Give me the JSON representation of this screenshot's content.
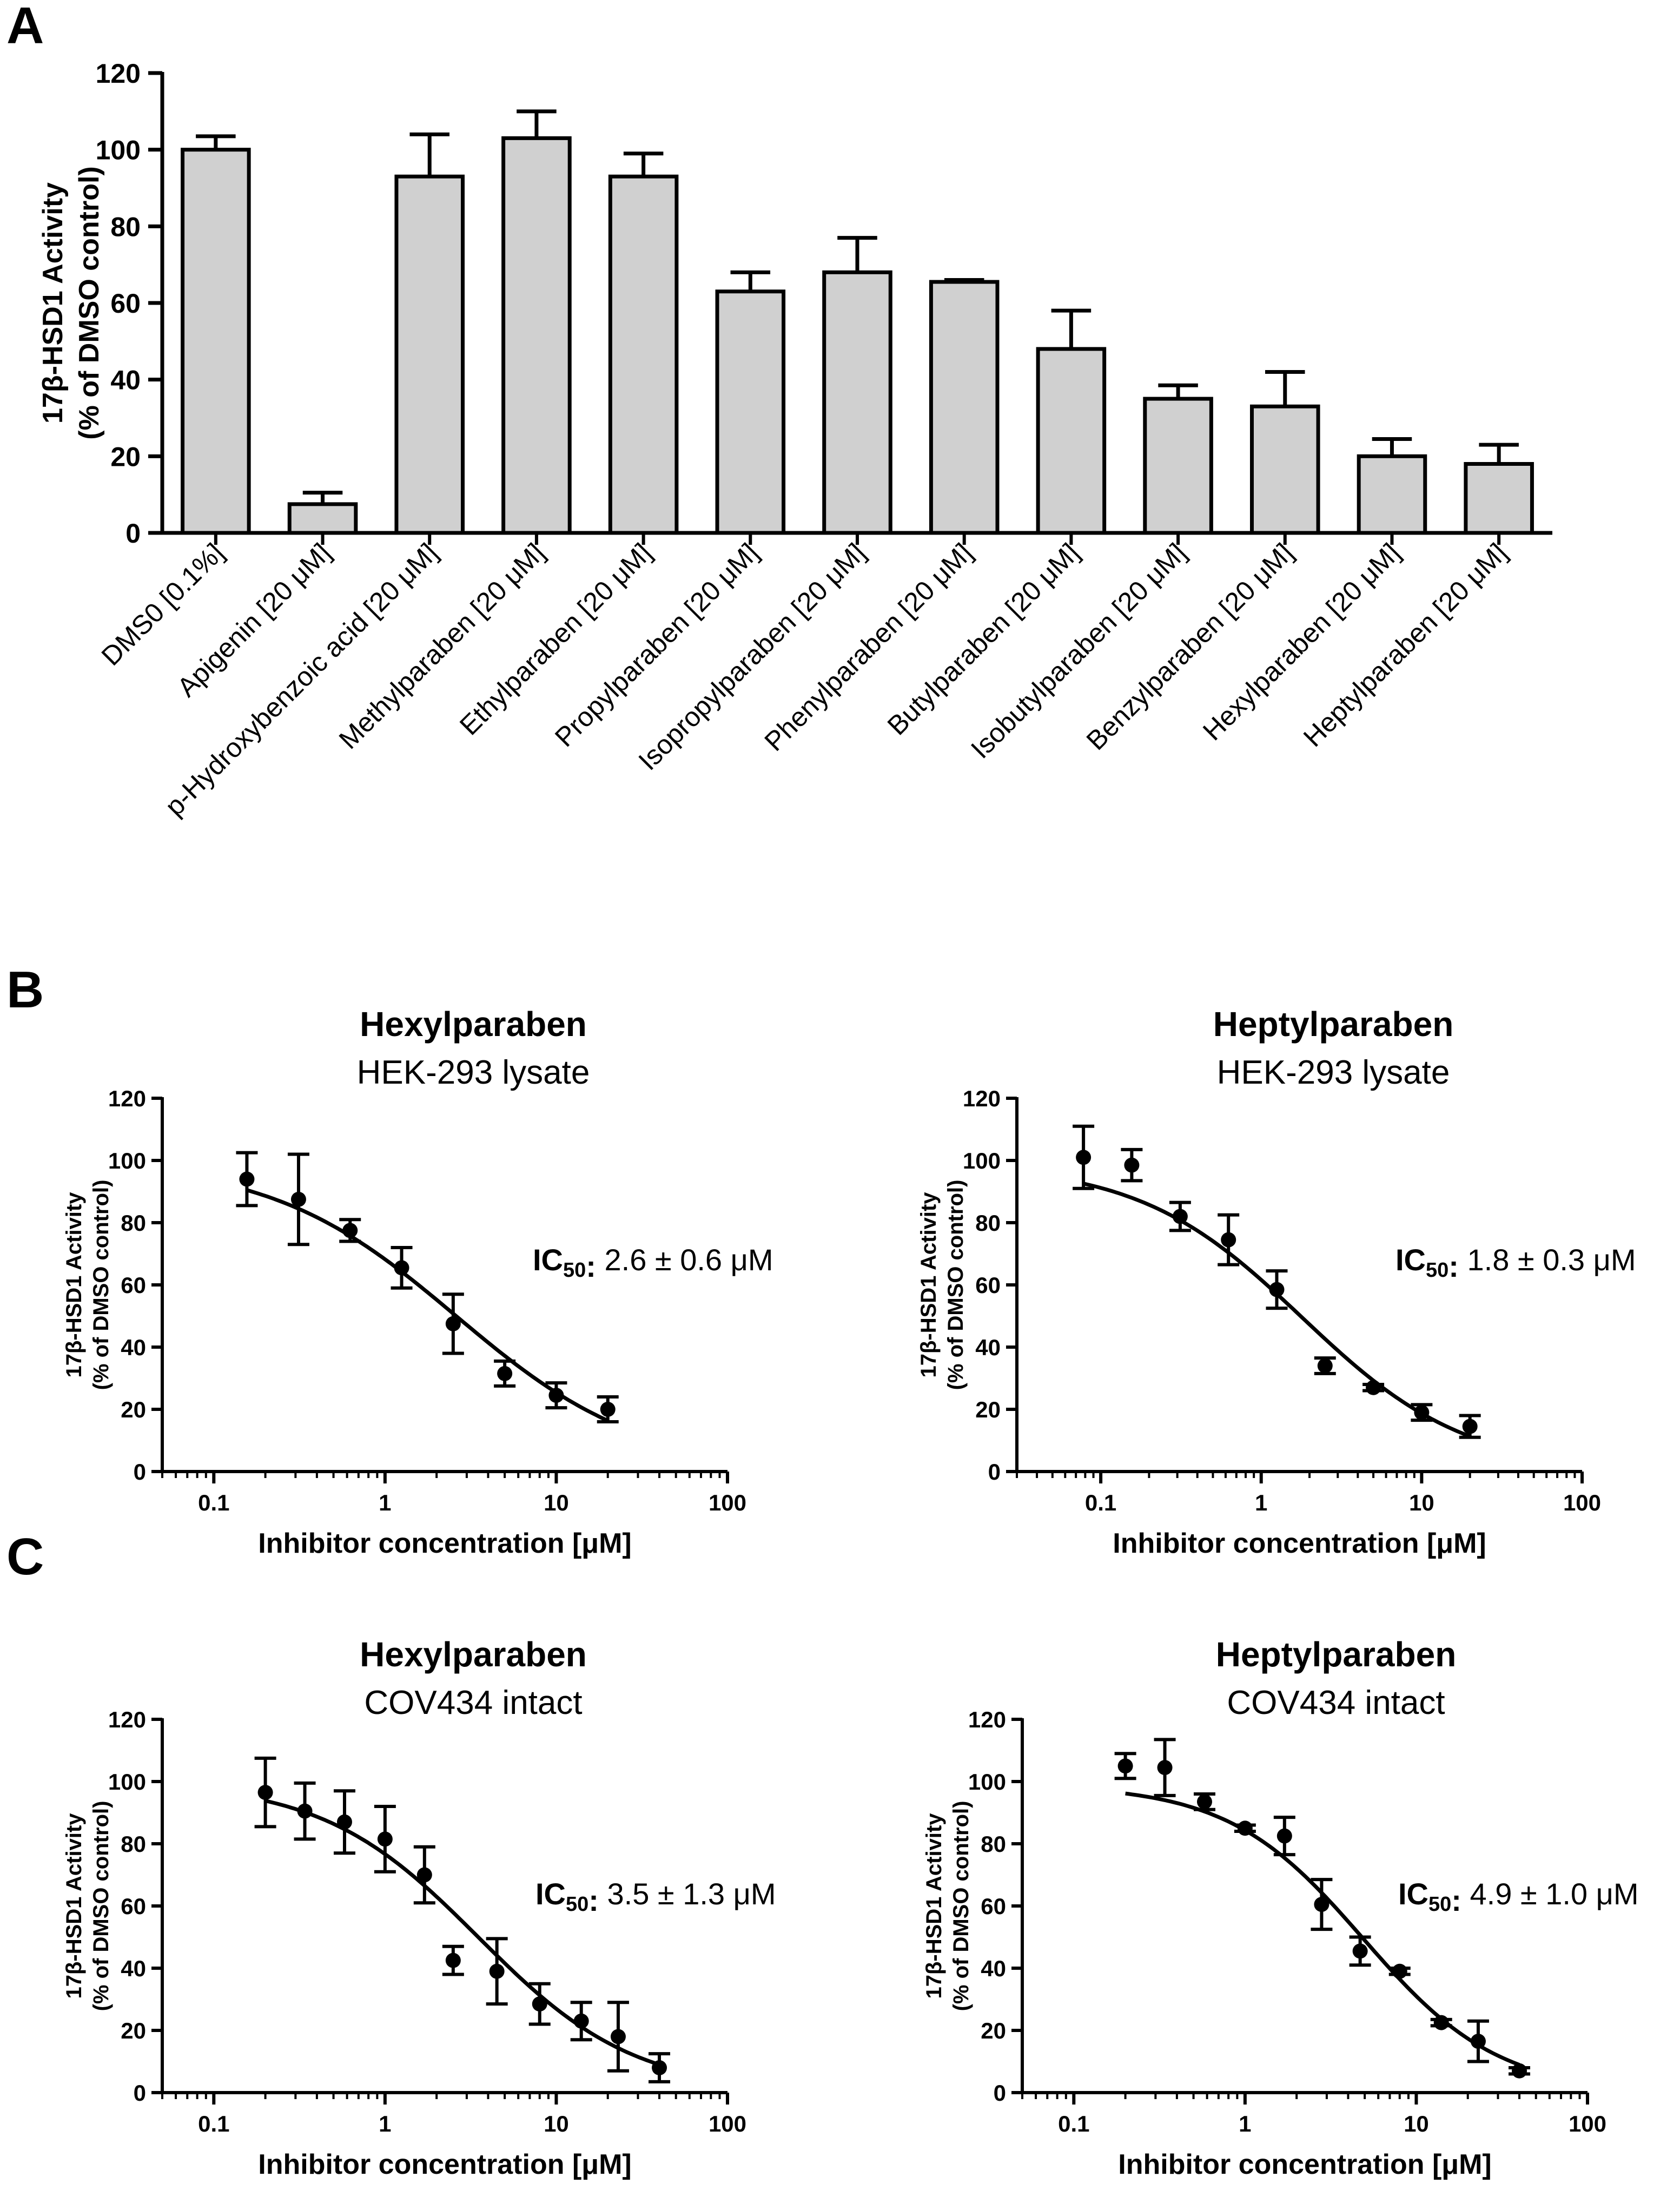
{
  "chart_data": [
    {
      "panel": "A",
      "type": "bar",
      "ylabel_line1": "17β-HSD1 Activity",
      "ylabel_line2": "(% of DMSO control)",
      "ylim": [
        0,
        120
      ],
      "yticks": [
        0,
        20,
        40,
        60,
        80,
        100,
        120
      ],
      "categories": [
        "DMS0 [0.1%]",
        "Apigenin [20 μM]",
        "p-Hydroxybenzoic acid [20 μM]",
        "Methylparaben [20 μM]",
        "Ethylparaben [20 μM]",
        "Propylparaben [20 μM]",
        "Isopropylparaben [20 μM]",
        "Phenylparaben [20 μM]",
        "Butylparaben [20 μM]",
        "Isobutylparaben [20 μM]",
        "Benzylparaben [20 μM]",
        "Hexylparaben [20 μM]",
        "Heptylparaben [20 μM]"
      ],
      "values": [
        100,
        7.5,
        93,
        103,
        93,
        63,
        68,
        65.5,
        48,
        35,
        33,
        20,
        18
      ],
      "errors": [
        3.5,
        3,
        11,
        7,
        6,
        5,
        9,
        0.5,
        10,
        3.5,
        9,
        4.5,
        5
      ],
      "bar_color": "#d0d0d0"
    },
    {
      "panel": "B",
      "type": "scatter",
      "title": "Hexylparaben",
      "subtitle": "HEK-293 lysate",
      "ic50_label": "IC",
      "ic50_sub": "50",
      "ic50_value": ": 2.6 ± 0.6 μM",
      "ylabel_line1": "17β-HSD1 Activity",
      "ylabel_line2": "(% of DMSO control)",
      "xlabel": "Inhibitor concentration [μM]",
      "xscale": "log",
      "xlim": [
        0.05,
        100
      ],
      "ylim": [
        0,
        120
      ],
      "xticks": [
        0.1,
        1,
        10,
        100
      ],
      "xtick_labels": [
        "0.1",
        "1",
        "10",
        "100"
      ],
      "yticks": [
        0,
        20,
        40,
        60,
        80,
        100,
        120
      ],
      "x": [
        0.156,
        0.3125,
        0.625,
        1.25,
        2.5,
        5,
        10,
        20
      ],
      "y": [
        94,
        87.5,
        77.5,
        65.5,
        47.5,
        31.5,
        24.5,
        20
      ],
      "err": [
        8.5,
        14.5,
        3.5,
        6.5,
        9.5,
        4,
        4,
        4
      ],
      "fit": {
        "top": 100,
        "bottom": 0,
        "ic50": 2.6,
        "hill": 0.8,
        "x_range": [
          0.156,
          20
        ]
      }
    },
    {
      "panel": "B2",
      "type": "scatter",
      "title": "Heptylparaben",
      "subtitle": "HEK-293 lysate",
      "ic50_label": "IC",
      "ic50_sub": "50",
      "ic50_value": ": 1.8 ± 0.3 μM",
      "ylabel_line1": "17β-HSD1 Activity",
      "ylabel_line2": "(% of DMSO control)",
      "xlabel": "Inhibitor concentration [μM]",
      "xscale": "log",
      "xlim": [
        0.03,
        100
      ],
      "ylim": [
        0,
        120
      ],
      "xticks": [
        0.1,
        1,
        10,
        100
      ],
      "xtick_labels": [
        "0.1",
        "1",
        "10",
        "100"
      ],
      "yticks": [
        0,
        20,
        40,
        60,
        80,
        100,
        120
      ],
      "x": [
        0.078,
        0.156,
        0.3125,
        0.625,
        1.25,
        2.5,
        5,
        10,
        20
      ],
      "y": [
        101,
        98.5,
        82,
        74.5,
        58.5,
        34,
        27,
        19,
        14.5
      ],
      "err": [
        10,
        5,
        4.5,
        8,
        6,
        2.5,
        1,
        2.5,
        3.5
      ],
      "fit": {
        "top": 99,
        "bottom": 0,
        "ic50": 1.8,
        "hill": 0.85,
        "x_range": [
          0.078,
          20
        ]
      }
    },
    {
      "panel": "C",
      "type": "scatter",
      "title": "Hexylparaben",
      "subtitle": "COV434 intact",
      "ic50_label": "IC",
      "ic50_sub": "50",
      "ic50_value": ": 3.5 ± 1.3 μM",
      "ylabel_line1": "17β-HSD1 Activity",
      "ylabel_line2": "(% of DMSO control)",
      "xlabel": "Inhibitor concentration [μM]",
      "xscale": "log",
      "xlim": [
        0.05,
        100
      ],
      "ylim": [
        0,
        120
      ],
      "xticks": [
        0.1,
        1,
        10,
        100
      ],
      "xtick_labels": [
        "0.1",
        "1",
        "10",
        "100"
      ],
      "yticks": [
        0,
        20,
        40,
        60,
        80,
        100,
        120
      ],
      "x": [
        0.2,
        0.34,
        0.58,
        1.0,
        1.7,
        2.5,
        4.5,
        8.0,
        14,
        23,
        40
      ],
      "y": [
        96.5,
        90.5,
        87,
        81.5,
        70,
        42.5,
        39,
        28.5,
        23,
        18,
        8
      ],
      "err": [
        11,
        9,
        10,
        10.5,
        9,
        4.5,
        10.5,
        6.5,
        6,
        11,
        4.5
      ],
      "fit": {
        "top": 100,
        "bottom": 0,
        "ic50": 3.5,
        "hill": 0.95,
        "x_range": [
          0.2,
          40
        ]
      }
    },
    {
      "panel": "C2",
      "type": "scatter",
      "title": "Heptylparaben",
      "subtitle": "COV434 intact",
      "ic50_label": "IC",
      "ic50_sub": "50",
      "ic50_value": ": 4.9 ± 1.0 μM",
      "ylabel_line1": "17β-HSD1 Activity",
      "ylabel_line2": "(% of DMSO control)",
      "xlabel": "Inhibitor concentration [μM]",
      "xscale": "log",
      "xlim": [
        0.05,
        100
      ],
      "ylim": [
        0,
        120
      ],
      "xticks": [
        0.1,
        1,
        10,
        100
      ],
      "xtick_labels": [
        "0.1",
        "1",
        "10",
        "100"
      ],
      "yticks": [
        0,
        20,
        40,
        60,
        80,
        100,
        120
      ],
      "x": [
        0.2,
        0.34,
        0.58,
        1.0,
        1.7,
        2.8,
        4.7,
        8.0,
        14,
        23,
        40
      ],
      "y": [
        105,
        104.5,
        93.5,
        85,
        82.5,
        60.5,
        45.5,
        39,
        22.5,
        16.5,
        7
      ],
      "err": [
        4,
        9,
        2.5,
        1,
        6,
        8,
        4.5,
        1,
        1,
        6.5,
        1
      ],
      "fit": {
        "top": 99,
        "bottom": 0,
        "ic50": 4.9,
        "hill": 1.1,
        "x_range": [
          0.2,
          40
        ]
      }
    }
  ],
  "panel_letters": {
    "a": "A",
    "b": "B",
    "c": "C"
  }
}
